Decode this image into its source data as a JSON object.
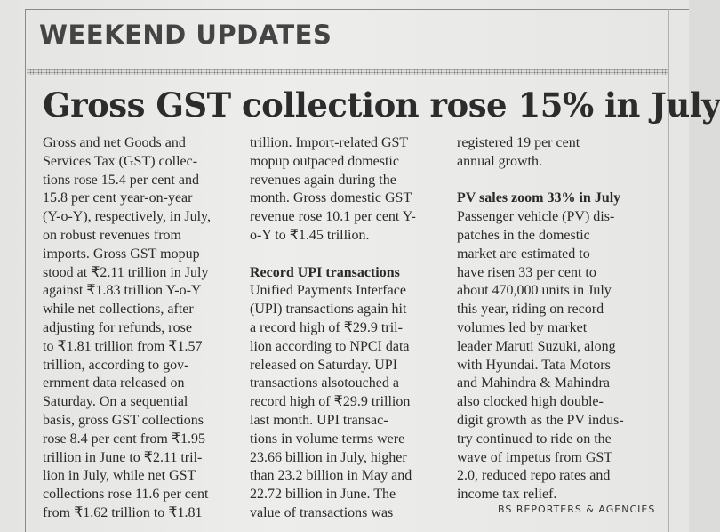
{
  "section": "WEEKEND UPDATES",
  "headline": "Gross GST collection rose 15% in July",
  "columns": [
    {
      "blocks": [
        {
          "lines": [
            "Gross and net Goods and",
            "Services Tax (GST) collec-",
            "tions rose 15.4 per cent and",
            "15.8 per cent year-on-year",
            "(Y-o-Y), respectively, in July,",
            "on robust revenues from",
            "imports. Gross GST mopup",
            "stood at ₹2.11 trillion in July",
            "against ₹1.83 trillion Y-o-Y",
            "while net collections, after",
            "adjusting for refunds, rose",
            "to ₹1.81 trillion from ₹1.57",
            "trillion, according to gov-",
            "ernment data released on",
            "Saturday. On a sequential",
            "basis, gross GST collections",
            "rose 8.4 per cent from ₹1.95",
            "trillion in June to ₹2.11 tril-",
            "lion in July, while net GST",
            "collections rose 11.6 per cent",
            "from ₹1.62 trillion to ₹1.81"
          ]
        }
      ]
    },
    {
      "blocks": [
        {
          "lines": [
            "trillion. Import-related GST",
            "mopup outpaced domestic",
            "revenues again during the",
            "month. Gross domestic GST",
            "revenue rose 10.1 per cent Y-",
            "o-Y to ₹1.45 trillion."
          ]
        },
        {
          "heading": "Record UPI transactions",
          "lines": [
            "Unified Payments Interface",
            "(UPI) transactions again hit",
            "a record high of ₹29.9 tril-",
            "lion according to NPCI data",
            "released on Saturday. UPI",
            "transactions alsotouched a",
            "record high of ₹29.9 trillion",
            "last month. UPI transac-",
            "tions in volume terms were",
            "23.66 billion in July, higher",
            "than 23.2 billion in May and",
            "22.72 billion in June. The",
            "value of transactions was"
          ]
        }
      ]
    },
    {
      "blocks": [
        {
          "lines": [
            "registered 19 per cent",
            "annual growth."
          ]
        },
        {
          "heading": "PV sales zoom 33% in July",
          "lines": [
            "Passenger vehicle (PV) dis-",
            "patches in the domestic",
            "market are estimated to",
            "have risen 33 per cent to",
            "about 470,000 units in July",
            "this year, riding on record",
            "volumes led by market",
            "leader Maruti Suzuki, along",
            "with Hyundai.  Tata Motors",
            "and Mahindra & Mahindra",
            "also clocked high double-",
            "digit growth as the PV indus-",
            "try continued to ride on the",
            "wave of impetus from GST",
            "2.0, reduced repo rates and",
            "income tax relief."
          ]
        }
      ]
    }
  ],
  "byline": "BS REPORTERS & AGENCIES"
}
